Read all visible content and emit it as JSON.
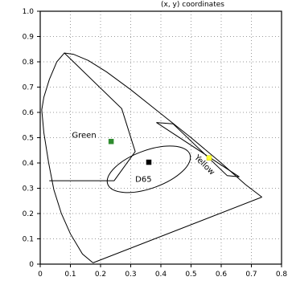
{
  "title_fragment": "(x, y) coordinates",
  "chart_data": {
    "type": "scatter",
    "xlim": [
      0,
      0.8
    ],
    "ylim": [
      0,
      1.0
    ],
    "x_ticks": [
      "0",
      "0.1",
      "0.2",
      "0.3",
      "0.4",
      "0.5",
      "0.6",
      "0.7",
      "0.8"
    ],
    "y_ticks": [
      "0",
      "0.1",
      "0.2",
      "0.3",
      "0.4",
      "0.5",
      "0.6",
      "0.7",
      "0.8",
      "0.9",
      "1.0"
    ],
    "grid": true,
    "colors": {
      "outline": "#000000",
      "green": "#2e8b2e",
      "d65": "#000000",
      "yellow": "#ffff33",
      "grid": "#999999"
    },
    "spectral_locus": [
      [
        0.175,
        0.005
      ],
      [
        0.14,
        0.04
      ],
      [
        0.1,
        0.12
      ],
      [
        0.07,
        0.2
      ],
      [
        0.045,
        0.295
      ],
      [
        0.028,
        0.4
      ],
      [
        0.012,
        0.52
      ],
      [
        0.005,
        0.61
      ],
      [
        0.012,
        0.66
      ],
      [
        0.03,
        0.73
      ],
      [
        0.055,
        0.8
      ],
      [
        0.08,
        0.835
      ],
      [
        0.11,
        0.83
      ],
      [
        0.16,
        0.805
      ],
      [
        0.22,
        0.76
      ],
      [
        0.3,
        0.69
      ],
      [
        0.4,
        0.595
      ],
      [
        0.5,
        0.5
      ],
      [
        0.6,
        0.4
      ],
      [
        0.68,
        0.315
      ],
      [
        0.735,
        0.265
      ]
    ],
    "purple_line": [
      [
        0.735,
        0.265
      ],
      [
        0.175,
        0.005
      ]
    ],
    "green_region": [
      [
        0.08,
        0.835
      ],
      [
        0.27,
        0.615
      ],
      [
        0.315,
        0.445
      ],
      [
        0.245,
        0.33
      ],
      [
        0.03,
        0.33
      ]
    ],
    "yellow_region": [
      [
        0.385,
        0.56
      ],
      [
        0.44,
        0.555
      ],
      [
        0.62,
        0.35
      ],
      [
        0.66,
        0.345
      ],
      [
        0.385,
        0.56
      ]
    ],
    "white_ellipse": {
      "cx": 0.36,
      "cy": 0.375,
      "rx": 0.145,
      "ry": 0.075,
      "angle_deg": 20
    },
    "points": [
      {
        "label": "Green",
        "x": 0.235,
        "y": 0.485,
        "color": "#2e8b2e"
      },
      {
        "label": "D65",
        "x": 0.36,
        "y": 0.403,
        "color": "#000000"
      },
      {
        "label": "Yellow",
        "x": 0.56,
        "y": 0.42,
        "color": "#ffff33"
      }
    ],
    "annotations": [
      {
        "text": "Green",
        "x": 0.105,
        "y": 0.5
      },
      {
        "text": "D65",
        "x": 0.315,
        "y": 0.325
      },
      {
        "text": "Yellow",
        "x": 0.51,
        "y": 0.42,
        "rotate": 45
      }
    ]
  }
}
